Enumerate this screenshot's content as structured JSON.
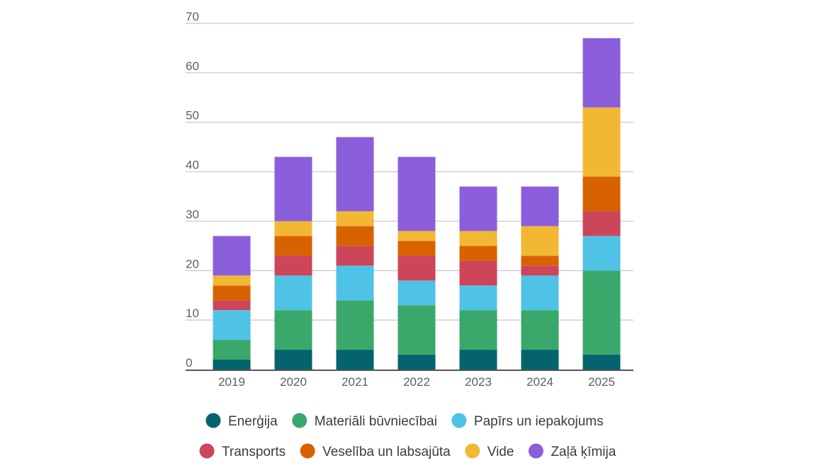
{
  "chart_data": {
    "type": "bar",
    "stacked": true,
    "title": "",
    "xlabel": "",
    "ylabel": "",
    "ylim": [
      0,
      70
    ],
    "yticks": [
      0,
      10,
      20,
      30,
      40,
      50,
      60,
      70
    ],
    "grid": true,
    "legend_position": "bottom",
    "categories": [
      "2019",
      "2020",
      "2021",
      "2022",
      "2023",
      "2024",
      "2025"
    ],
    "series": [
      {
        "name": "Enerģija",
        "color": "#05636e",
        "values": [
          2,
          4,
          4,
          3,
          4,
          4,
          3
        ]
      },
      {
        "name": "Materiāli būvniecībai",
        "color": "#3aa86b",
        "values": [
          4,
          8,
          10,
          10,
          8,
          8,
          17
        ]
      },
      {
        "name": "Papīrs un iepakojums",
        "color": "#4fc3e5",
        "values": [
          6,
          7,
          7,
          5,
          5,
          7,
          7
        ]
      },
      {
        "name": "Transports",
        "color": "#cc4559",
        "values": [
          2,
          4,
          4,
          5,
          5,
          2,
          5
        ]
      },
      {
        "name": "Veselība un labsajūta",
        "color": "#d96200",
        "values": [
          3,
          4,
          4,
          3,
          3,
          2,
          7
        ]
      },
      {
        "name": "Vide",
        "color": "#f2b833",
        "values": [
          2,
          3,
          3,
          2,
          3,
          6,
          14
        ]
      },
      {
        "name": "Zaļā ķīmija",
        "color": "#8b5edc",
        "values": [
          8,
          13,
          15,
          15,
          9,
          8,
          14
        ]
      }
    ]
  }
}
